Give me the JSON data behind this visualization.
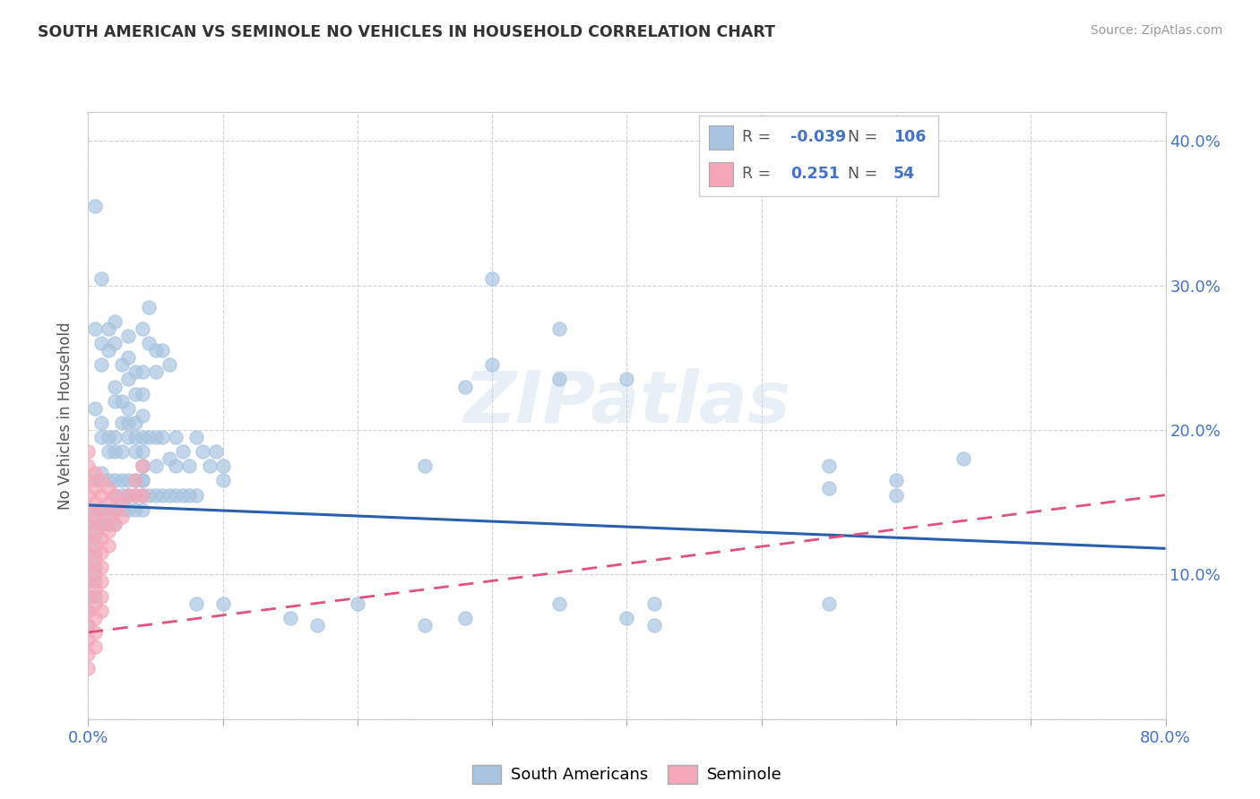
{
  "title": "SOUTH AMERICAN VS SEMINOLE NO VEHICLES IN HOUSEHOLD CORRELATION CHART",
  "source": "Source: ZipAtlas.com",
  "ylabel": "No Vehicles in Household",
  "xlim": [
    0.0,
    0.8
  ],
  "ylim": [
    0.0,
    0.42
  ],
  "xticks": [
    0.0,
    0.1,
    0.2,
    0.3,
    0.4,
    0.5,
    0.6,
    0.7,
    0.8
  ],
  "yticks": [
    0.0,
    0.1,
    0.2,
    0.3,
    0.4
  ],
  "blue_color": "#a8c4e0",
  "pink_color": "#f4a7b9",
  "blue_line_color": "#2b5fad",
  "pink_line_color": "#e05080",
  "blue_scatter": [
    [
      0.005,
      0.355
    ],
    [
      0.01,
      0.305
    ],
    [
      0.005,
      0.27
    ],
    [
      0.01,
      0.26
    ],
    [
      0.01,
      0.245
    ],
    [
      0.015,
      0.27
    ],
    [
      0.015,
      0.255
    ],
    [
      0.02,
      0.275
    ],
    [
      0.02,
      0.26
    ],
    [
      0.025,
      0.245
    ],
    [
      0.02,
      0.23
    ],
    [
      0.02,
      0.22
    ],
    [
      0.025,
      0.22
    ],
    [
      0.03,
      0.265
    ],
    [
      0.03,
      0.25
    ],
    [
      0.03,
      0.235
    ],
    [
      0.025,
      0.205
    ],
    [
      0.03,
      0.215
    ],
    [
      0.035,
      0.24
    ],
    [
      0.035,
      0.225
    ],
    [
      0.04,
      0.27
    ],
    [
      0.04,
      0.24
    ],
    [
      0.04,
      0.225
    ],
    [
      0.035,
      0.195
    ],
    [
      0.04,
      0.21
    ],
    [
      0.045,
      0.285
    ],
    [
      0.04,
      0.195
    ],
    [
      0.045,
      0.26
    ],
    [
      0.05,
      0.255
    ],
    [
      0.05,
      0.24
    ],
    [
      0.055,
      0.255
    ],
    [
      0.06,
      0.245
    ],
    [
      0.005,
      0.215
    ],
    [
      0.01,
      0.205
    ],
    [
      0.015,
      0.195
    ],
    [
      0.01,
      0.195
    ],
    [
      0.015,
      0.185
    ],
    [
      0.02,
      0.195
    ],
    [
      0.02,
      0.185
    ],
    [
      0.025,
      0.185
    ],
    [
      0.03,
      0.205
    ],
    [
      0.03,
      0.195
    ],
    [
      0.035,
      0.205
    ],
    [
      0.035,
      0.185
    ],
    [
      0.04,
      0.185
    ],
    [
      0.04,
      0.175
    ],
    [
      0.04,
      0.165
    ],
    [
      0.045,
      0.195
    ],
    [
      0.05,
      0.195
    ],
    [
      0.05,
      0.175
    ],
    [
      0.055,
      0.195
    ],
    [
      0.06,
      0.18
    ],
    [
      0.065,
      0.195
    ],
    [
      0.065,
      0.175
    ],
    [
      0.07,
      0.185
    ],
    [
      0.075,
      0.175
    ],
    [
      0.08,
      0.195
    ],
    [
      0.085,
      0.185
    ],
    [
      0.09,
      0.175
    ],
    [
      0.095,
      0.185
    ],
    [
      0.1,
      0.175
    ],
    [
      0.1,
      0.165
    ],
    [
      0.005,
      0.165
    ],
    [
      0.01,
      0.17
    ],
    [
      0.015,
      0.165
    ],
    [
      0.02,
      0.165
    ],
    [
      0.02,
      0.155
    ],
    [
      0.025,
      0.165
    ],
    [
      0.025,
      0.155
    ],
    [
      0.03,
      0.165
    ],
    [
      0.03,
      0.155
    ],
    [
      0.035,
      0.165
    ],
    [
      0.035,
      0.155
    ],
    [
      0.04,
      0.165
    ],
    [
      0.04,
      0.155
    ],
    [
      0.045,
      0.155
    ],
    [
      0.05,
      0.155
    ],
    [
      0.055,
      0.155
    ],
    [
      0.06,
      0.155
    ],
    [
      0.065,
      0.155
    ],
    [
      0.07,
      0.155
    ],
    [
      0.075,
      0.155
    ],
    [
      0.08,
      0.155
    ],
    [
      0.0,
      0.145
    ],
    [
      0.005,
      0.145
    ],
    [
      0.01,
      0.145
    ],
    [
      0.015,
      0.145
    ],
    [
      0.02,
      0.145
    ],
    [
      0.025,
      0.145
    ],
    [
      0.03,
      0.145
    ],
    [
      0.035,
      0.145
    ],
    [
      0.04,
      0.145
    ],
    [
      0.0,
      0.135
    ],
    [
      0.005,
      0.135
    ],
    [
      0.01,
      0.135
    ],
    [
      0.015,
      0.135
    ],
    [
      0.02,
      0.135
    ],
    [
      0.0,
      0.125
    ],
    [
      0.005,
      0.125
    ],
    [
      0.0,
      0.115
    ],
    [
      0.005,
      0.115
    ],
    [
      0.0,
      0.105
    ],
    [
      0.005,
      0.105
    ],
    [
      0.0,
      0.095
    ],
    [
      0.005,
      0.095
    ],
    [
      0.0,
      0.085
    ],
    [
      0.005,
      0.085
    ],
    [
      0.0,
      0.075
    ],
    [
      0.0,
      0.065
    ],
    [
      0.3,
      0.245
    ],
    [
      0.35,
      0.27
    ],
    [
      0.35,
      0.235
    ],
    [
      0.4,
      0.235
    ],
    [
      0.55,
      0.175
    ],
    [
      0.55,
      0.16
    ],
    [
      0.6,
      0.165
    ],
    [
      0.6,
      0.155
    ],
    [
      0.65,
      0.18
    ],
    [
      0.25,
      0.175
    ],
    [
      0.28,
      0.23
    ],
    [
      0.3,
      0.305
    ],
    [
      0.08,
      0.08
    ],
    [
      0.1,
      0.08
    ],
    [
      0.35,
      0.08
    ],
    [
      0.42,
      0.08
    ],
    [
      0.55,
      0.08
    ],
    [
      0.4,
      0.07
    ],
    [
      0.42,
      0.065
    ],
    [
      0.25,
      0.065
    ],
    [
      0.28,
      0.07
    ],
    [
      0.15,
      0.07
    ],
    [
      0.17,
      0.065
    ],
    [
      0.2,
      0.08
    ]
  ],
  "pink_scatter": [
    [
      0.0,
      0.185
    ],
    [
      0.0,
      0.175
    ],
    [
      0.0,
      0.165
    ],
    [
      0.0,
      0.155
    ],
    [
      0.0,
      0.145
    ],
    [
      0.0,
      0.135
    ],
    [
      0.0,
      0.125
    ],
    [
      0.0,
      0.115
    ],
    [
      0.0,
      0.105
    ],
    [
      0.0,
      0.095
    ],
    [
      0.0,
      0.085
    ],
    [
      0.0,
      0.075
    ],
    [
      0.0,
      0.065
    ],
    [
      0.0,
      0.055
    ],
    [
      0.0,
      0.045
    ],
    [
      0.0,
      0.035
    ],
    [
      0.005,
      0.17
    ],
    [
      0.005,
      0.16
    ],
    [
      0.005,
      0.15
    ],
    [
      0.005,
      0.14
    ],
    [
      0.005,
      0.13
    ],
    [
      0.005,
      0.12
    ],
    [
      0.005,
      0.11
    ],
    [
      0.005,
      0.1
    ],
    [
      0.005,
      0.09
    ],
    [
      0.005,
      0.08
    ],
    [
      0.005,
      0.07
    ],
    [
      0.005,
      0.06
    ],
    [
      0.005,
      0.05
    ],
    [
      0.01,
      0.165
    ],
    [
      0.01,
      0.155
    ],
    [
      0.01,
      0.145
    ],
    [
      0.01,
      0.135
    ],
    [
      0.01,
      0.125
    ],
    [
      0.01,
      0.115
    ],
    [
      0.01,
      0.105
    ],
    [
      0.01,
      0.095
    ],
    [
      0.01,
      0.085
    ],
    [
      0.01,
      0.075
    ],
    [
      0.015,
      0.16
    ],
    [
      0.015,
      0.15
    ],
    [
      0.015,
      0.14
    ],
    [
      0.015,
      0.13
    ],
    [
      0.015,
      0.12
    ],
    [
      0.02,
      0.155
    ],
    [
      0.02,
      0.145
    ],
    [
      0.02,
      0.135
    ],
    [
      0.025,
      0.15
    ],
    [
      0.025,
      0.14
    ],
    [
      0.03,
      0.155
    ],
    [
      0.035,
      0.165
    ],
    [
      0.035,
      0.155
    ],
    [
      0.04,
      0.175
    ],
    [
      0.04,
      0.155
    ]
  ],
  "blue_trendline": [
    [
      0.0,
      0.148
    ],
    [
      0.8,
      0.118
    ]
  ],
  "pink_trendline": [
    [
      0.0,
      0.06
    ],
    [
      0.8,
      0.155
    ]
  ]
}
